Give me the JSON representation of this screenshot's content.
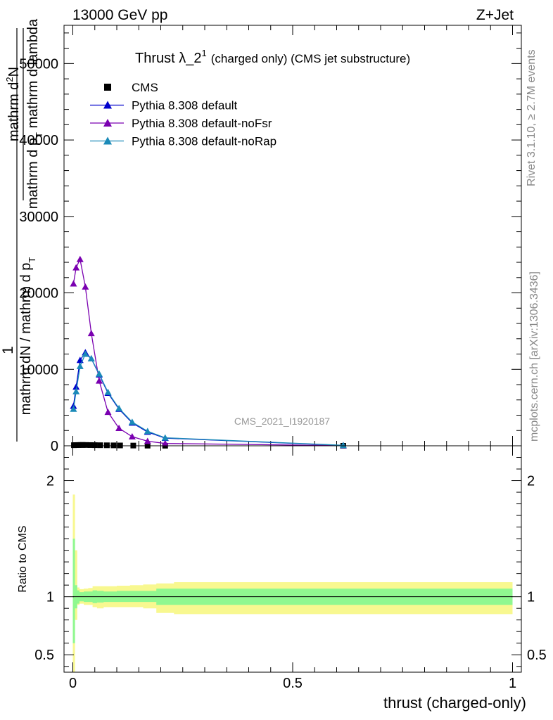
{
  "header": {
    "left": "13000 GeV pp",
    "right": "Z+Jet"
  },
  "side_labels": {
    "rivet": "Rivet 3.1.10, ≥ 2.7M events",
    "mcplots": "mcplots.cern.ch [arXiv:1306.3436]"
  },
  "watermark": "CMS_2021_I1920187",
  "chart_data": [
    {
      "type": "line",
      "title_main": "Thrust λ_2",
      "title_sup": "1",
      "title_rest": "(charged only) (CMS jet substructure)",
      "ylabel_lines": [
        "mathrm d²N",
        "mathrm d p_T mathrm d lambda",
        "1",
        "mathrm dN / mathrm d p_T"
      ],
      "ylabel_parts": {
        "one": "1",
        "num": "mathrm d",
        "num_sup": "2",
        "num_rest": "N",
        "den_a": "mathrm d p",
        "den_a_sub": "T",
        "den_a_rest": " mathrm d lambda",
        "outer_den": "mathrm dN / mathrm d p",
        "outer_den_sub": "T"
      },
      "xlim": [
        -0.02,
        1.02
      ],
      "ylim": [
        0,
        55000
      ],
      "yticks": [
        0,
        10000,
        20000,
        30000,
        40000,
        50000
      ],
      "ytick_labels": [
        "0",
        "10000",
        "20000",
        "30000",
        "40000",
        "50000"
      ],
      "legend_position": "top-left",
      "series": [
        {
          "name": "CMS",
          "marker": "square",
          "color": "#000000",
          "x": [
            0.0025,
            0.0075,
            0.0125,
            0.0175,
            0.0225,
            0.03,
            0.04,
            0.05,
            0.0625,
            0.0775,
            0.0925,
            0.1075,
            0.1375,
            0.17,
            0.21,
            0.615
          ],
          "y": [
            80,
            90,
            100,
            105,
            110,
            105,
            95,
            85,
            75,
            65,
            55,
            45,
            30,
            18,
            10,
            0
          ]
        },
        {
          "name": "Pythia 8.308 default",
          "marker": "triangle",
          "color": "#0000cc",
          "x": [
            0.0015,
            0.0075,
            0.0165,
            0.0285,
            0.042,
            0.06,
            0.08,
            0.105,
            0.135,
            0.17,
            0.21,
            0.615
          ],
          "y": [
            5200,
            7700,
            11200,
            12200,
            11400,
            9300,
            6900,
            4800,
            3000,
            1800,
            1000,
            50
          ]
        },
        {
          "name": "Pythia 8.308 default-noFsr",
          "marker": "triangle",
          "color": "#7a00b0",
          "x": [
            0.0015,
            0.0075,
            0.0165,
            0.0285,
            0.042,
            0.06,
            0.08,
            0.105,
            0.135,
            0.17,
            0.21,
            0.615
          ],
          "y": [
            21200,
            23300,
            24400,
            20800,
            14700,
            8500,
            4400,
            2300,
            1200,
            600,
            300,
            20
          ]
        },
        {
          "name": "Pythia 8.308 default-noRap",
          "marker": "triangle",
          "color": "#1a8ab8",
          "x": [
            0.0015,
            0.0075,
            0.0165,
            0.0285,
            0.042,
            0.06,
            0.08,
            0.105,
            0.135,
            0.17,
            0.21,
            0.615
          ],
          "y": [
            4800,
            7100,
            10400,
            12000,
            11400,
            9400,
            7000,
            4900,
            3100,
            1900,
            1050,
            60
          ]
        }
      ]
    },
    {
      "type": "area",
      "ylabel": "Ratio to CMS",
      "xlabel": "thrust (charged-only)",
      "xlim": [
        -0.02,
        1.02
      ],
      "ylim": [
        0.35,
        2.3
      ],
      "xticks": [
        0,
        0.5,
        1
      ],
      "xtick_labels": [
        "0",
        "0.5",
        "1"
      ],
      "yticks": [
        0.5,
        1,
        2
      ],
      "ytick_labels": [
        "0.5",
        "1",
        "2"
      ],
      "reference": 1,
      "bins": [
        0,
        0.005,
        0.01,
        0.015,
        0.02,
        0.025,
        0.035,
        0.045,
        0.055,
        0.07,
        0.085,
        0.1,
        0.115,
        0.13,
        0.16,
        0.19,
        0.23,
        1.0
      ],
      "stat_band_color": "#90f890",
      "total_band_color": "#f8f890",
      "stat_lo": [
        0.6,
        0.9,
        0.94,
        0.96,
        0.96,
        0.955,
        0.955,
        0.945,
        0.95,
        0.955,
        0.955,
        0.955,
        0.955,
        0.955,
        0.955,
        0.93,
        0.93
      ],
      "stat_hi": [
        1.5,
        1.1,
        1.055,
        1.04,
        1.04,
        1.045,
        1.045,
        1.055,
        1.05,
        1.045,
        1.045,
        1.05,
        1.05,
        1.05,
        1.05,
        1.07,
        1.07
      ],
      "total_lo": [
        0.35,
        0.8,
        0.93,
        0.94,
        0.94,
        0.93,
        0.93,
        0.91,
        0.9,
        0.91,
        0.91,
        0.91,
        0.91,
        0.91,
        0.9,
        0.86,
        0.85
      ],
      "total_hi": [
        1.88,
        1.4,
        1.08,
        1.065,
        1.065,
        1.07,
        1.075,
        1.09,
        1.09,
        1.09,
        1.09,
        1.095,
        1.095,
        1.1,
        1.105,
        1.115,
        1.125
      ]
    }
  ]
}
